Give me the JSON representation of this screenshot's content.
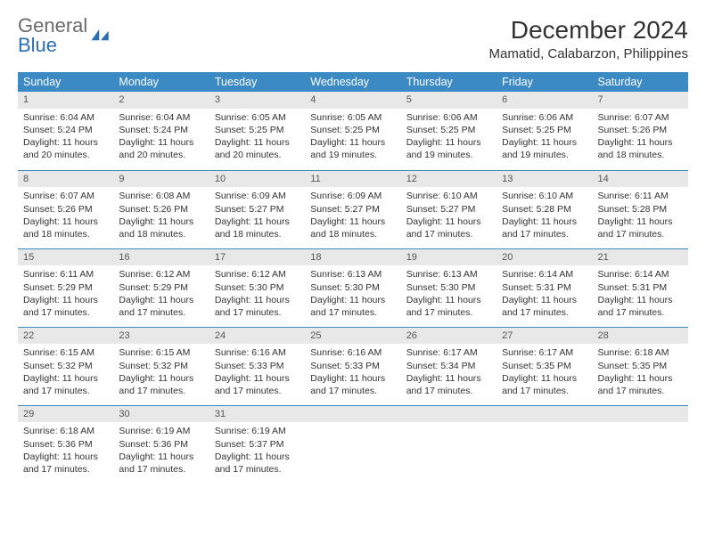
{
  "logo": {
    "text_gray": "General",
    "text_blue": "Blue"
  },
  "title": "December 2024",
  "location": "Mamatid, Calabarzon, Philippines",
  "header_color": "#3b8ac4",
  "daynum_bg": "#e8e8e8",
  "border_color": "#3b8ac4",
  "days_of_week": [
    "Sunday",
    "Monday",
    "Tuesday",
    "Wednesday",
    "Thursday",
    "Friday",
    "Saturday"
  ],
  "weeks": [
    [
      {
        "n": "1",
        "sunrise": "Sunrise: 6:04 AM",
        "sunset": "Sunset: 5:24 PM",
        "daylight": "Daylight: 11 hours and 20 minutes."
      },
      {
        "n": "2",
        "sunrise": "Sunrise: 6:04 AM",
        "sunset": "Sunset: 5:24 PM",
        "daylight": "Daylight: 11 hours and 20 minutes."
      },
      {
        "n": "3",
        "sunrise": "Sunrise: 6:05 AM",
        "sunset": "Sunset: 5:25 PM",
        "daylight": "Daylight: 11 hours and 20 minutes."
      },
      {
        "n": "4",
        "sunrise": "Sunrise: 6:05 AM",
        "sunset": "Sunset: 5:25 PM",
        "daylight": "Daylight: 11 hours and 19 minutes."
      },
      {
        "n": "5",
        "sunrise": "Sunrise: 6:06 AM",
        "sunset": "Sunset: 5:25 PM",
        "daylight": "Daylight: 11 hours and 19 minutes."
      },
      {
        "n": "6",
        "sunrise": "Sunrise: 6:06 AM",
        "sunset": "Sunset: 5:25 PM",
        "daylight": "Daylight: 11 hours and 19 minutes."
      },
      {
        "n": "7",
        "sunrise": "Sunrise: 6:07 AM",
        "sunset": "Sunset: 5:26 PM",
        "daylight": "Daylight: 11 hours and 18 minutes."
      }
    ],
    [
      {
        "n": "8",
        "sunrise": "Sunrise: 6:07 AM",
        "sunset": "Sunset: 5:26 PM",
        "daylight": "Daylight: 11 hours and 18 minutes."
      },
      {
        "n": "9",
        "sunrise": "Sunrise: 6:08 AM",
        "sunset": "Sunset: 5:26 PM",
        "daylight": "Daylight: 11 hours and 18 minutes."
      },
      {
        "n": "10",
        "sunrise": "Sunrise: 6:09 AM",
        "sunset": "Sunset: 5:27 PM",
        "daylight": "Daylight: 11 hours and 18 minutes."
      },
      {
        "n": "11",
        "sunrise": "Sunrise: 6:09 AM",
        "sunset": "Sunset: 5:27 PM",
        "daylight": "Daylight: 11 hours and 18 minutes."
      },
      {
        "n": "12",
        "sunrise": "Sunrise: 6:10 AM",
        "sunset": "Sunset: 5:27 PM",
        "daylight": "Daylight: 11 hours and 17 minutes."
      },
      {
        "n": "13",
        "sunrise": "Sunrise: 6:10 AM",
        "sunset": "Sunset: 5:28 PM",
        "daylight": "Daylight: 11 hours and 17 minutes."
      },
      {
        "n": "14",
        "sunrise": "Sunrise: 6:11 AM",
        "sunset": "Sunset: 5:28 PM",
        "daylight": "Daylight: 11 hours and 17 minutes."
      }
    ],
    [
      {
        "n": "15",
        "sunrise": "Sunrise: 6:11 AM",
        "sunset": "Sunset: 5:29 PM",
        "daylight": "Daylight: 11 hours and 17 minutes."
      },
      {
        "n": "16",
        "sunrise": "Sunrise: 6:12 AM",
        "sunset": "Sunset: 5:29 PM",
        "daylight": "Daylight: 11 hours and 17 minutes."
      },
      {
        "n": "17",
        "sunrise": "Sunrise: 6:12 AM",
        "sunset": "Sunset: 5:30 PM",
        "daylight": "Daylight: 11 hours and 17 minutes."
      },
      {
        "n": "18",
        "sunrise": "Sunrise: 6:13 AM",
        "sunset": "Sunset: 5:30 PM",
        "daylight": "Daylight: 11 hours and 17 minutes."
      },
      {
        "n": "19",
        "sunrise": "Sunrise: 6:13 AM",
        "sunset": "Sunset: 5:30 PM",
        "daylight": "Daylight: 11 hours and 17 minutes."
      },
      {
        "n": "20",
        "sunrise": "Sunrise: 6:14 AM",
        "sunset": "Sunset: 5:31 PM",
        "daylight": "Daylight: 11 hours and 17 minutes."
      },
      {
        "n": "21",
        "sunrise": "Sunrise: 6:14 AM",
        "sunset": "Sunset: 5:31 PM",
        "daylight": "Daylight: 11 hours and 17 minutes."
      }
    ],
    [
      {
        "n": "22",
        "sunrise": "Sunrise: 6:15 AM",
        "sunset": "Sunset: 5:32 PM",
        "daylight": "Daylight: 11 hours and 17 minutes."
      },
      {
        "n": "23",
        "sunrise": "Sunrise: 6:15 AM",
        "sunset": "Sunset: 5:32 PM",
        "daylight": "Daylight: 11 hours and 17 minutes."
      },
      {
        "n": "24",
        "sunrise": "Sunrise: 6:16 AM",
        "sunset": "Sunset: 5:33 PM",
        "daylight": "Daylight: 11 hours and 17 minutes."
      },
      {
        "n": "25",
        "sunrise": "Sunrise: 6:16 AM",
        "sunset": "Sunset: 5:33 PM",
        "daylight": "Daylight: 11 hours and 17 minutes."
      },
      {
        "n": "26",
        "sunrise": "Sunrise: 6:17 AM",
        "sunset": "Sunset: 5:34 PM",
        "daylight": "Daylight: 11 hours and 17 minutes."
      },
      {
        "n": "27",
        "sunrise": "Sunrise: 6:17 AM",
        "sunset": "Sunset: 5:35 PM",
        "daylight": "Daylight: 11 hours and 17 minutes."
      },
      {
        "n": "28",
        "sunrise": "Sunrise: 6:18 AM",
        "sunset": "Sunset: 5:35 PM",
        "daylight": "Daylight: 11 hours and 17 minutes."
      }
    ],
    [
      {
        "n": "29",
        "sunrise": "Sunrise: 6:18 AM",
        "sunset": "Sunset: 5:36 PM",
        "daylight": "Daylight: 11 hours and 17 minutes."
      },
      {
        "n": "30",
        "sunrise": "Sunrise: 6:19 AM",
        "sunset": "Sunset: 5:36 PM",
        "daylight": "Daylight: 11 hours and 17 minutes."
      },
      {
        "n": "31",
        "sunrise": "Sunrise: 6:19 AM",
        "sunset": "Sunset: 5:37 PM",
        "daylight": "Daylight: 11 hours and 17 minutes."
      },
      {
        "empty": true
      },
      {
        "empty": true
      },
      {
        "empty": true
      },
      {
        "empty": true
      }
    ]
  ]
}
